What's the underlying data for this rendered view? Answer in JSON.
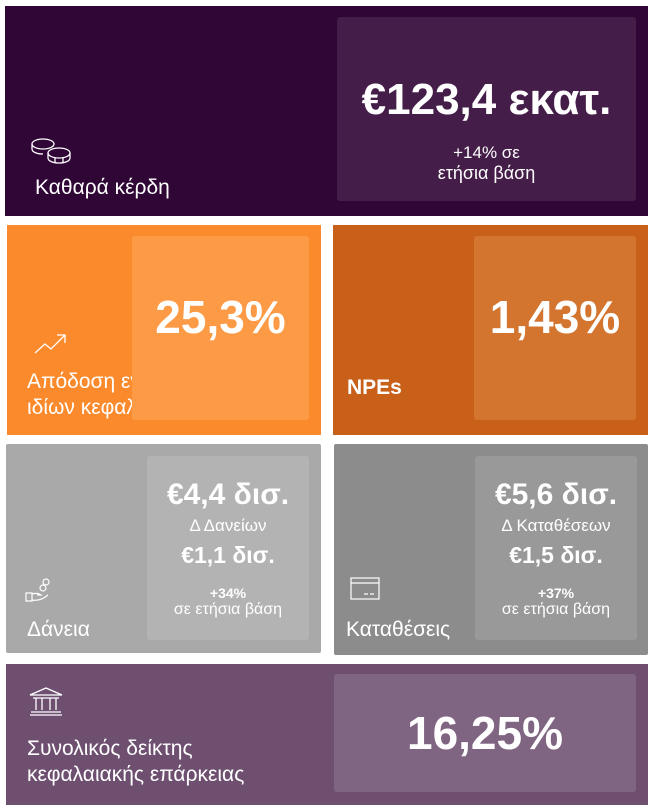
{
  "tiles": {
    "net_profit": {
      "label": "Καθαρά κέρδη",
      "value": "€123,4 εκατ.",
      "change": "+14% σε",
      "change_sub": "ετήσια βάση",
      "icon": "coins-icon",
      "color": "#2f0636"
    },
    "roe": {
      "label": "Απόδοση ενσώματων",
      "label2": "ιδίων κεφαλαίων",
      "value": "25,3%",
      "icon": "trend-up-icon",
      "color": "#fb8a2c"
    },
    "npe": {
      "label": "NPEs",
      "value": "1,43%",
      "color": "#c8601a"
    },
    "loans": {
      "label": "Δάνεια",
      "value": "€4,4 δισ.",
      "delta_label": "Δ Δανείων",
      "delta_value": "€1,1 δισ.",
      "change": "+34%",
      "change_sub": "σε ετήσια βάση",
      "icon": "hand-coins-icon",
      "color": "#a9a9a9"
    },
    "deposits": {
      "label": "Καταθέσεις",
      "value": "€5,6 δισ.",
      "delta_label": "Δ Καταθέσεων",
      "delta_value": "€1,5 δισ.",
      "change": "+37%",
      "change_sub": "σε ετήσια βάση",
      "icon": "card-icon",
      "color": "#8c8c8c"
    },
    "capital": {
      "label": "Συνολικός δείκτης",
      "label2": "κεφαλαιακής επάρκειας",
      "value": "16,25%",
      "icon": "bank-icon",
      "color": "#6e4f70"
    }
  }
}
